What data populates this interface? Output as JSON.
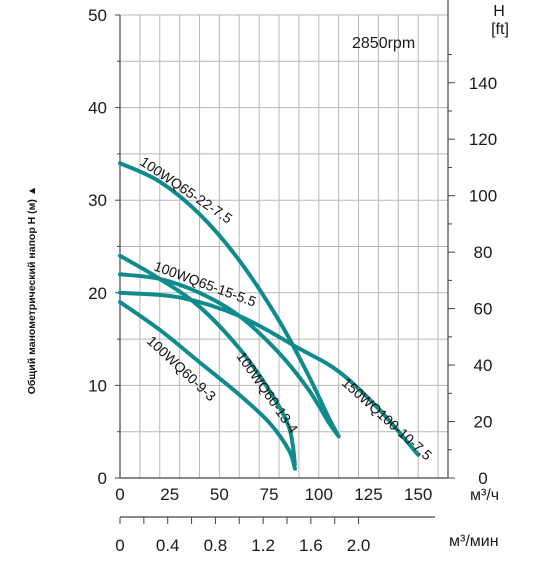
{
  "chart_data": {
    "type": "line",
    "speed_label": "2850rpm",
    "ylabel": "Общий манометрический напор Н (м)",
    "y_axis_m": {
      "range": [
        0,
        50
      ],
      "ticks": [
        "0",
        "10",
        "20",
        "30",
        "40",
        "50"
      ]
    },
    "y_axis_ft": {
      "title": "H",
      "unit": "[ft]",
      "range": [
        0,
        164
      ],
      "ticks": [
        "0",
        "20",
        "40",
        "60",
        "80",
        "100",
        "120",
        "140"
      ]
    },
    "x_axis_m3h": {
      "unit": "м³/ч",
      "range": [
        0,
        165
      ],
      "ticks": [
        "0",
        "25",
        "50",
        "75",
        "100",
        "125",
        "150"
      ]
    },
    "x_axis_m3min": {
      "unit": "м³/мин",
      "ticks": [
        "0",
        "0.4",
        "0.8",
        "1.2",
        "1.6",
        "2.0"
      ]
    },
    "series_color": "#0f8b8d",
    "series": [
      {
        "name": "100WQ65-22-7.5",
        "points": [
          [
            0,
            34
          ],
          [
            20,
            32
          ],
          [
            40,
            28.5
          ],
          [
            60,
            23.5
          ],
          [
            80,
            17
          ],
          [
            95,
            11
          ],
          [
            105,
            6.5
          ],
          [
            110,
            4.5
          ]
        ]
      },
      {
        "name": "100WQ65-15-5.5",
        "points": [
          [
            0,
            22
          ],
          [
            20,
            21.5
          ],
          [
            40,
            20
          ],
          [
            60,
            17.5
          ],
          [
            80,
            13.5
          ],
          [
            95,
            9.5
          ],
          [
            105,
            6
          ],
          [
            110,
            4.5
          ]
        ]
      },
      {
        "name": "100WQ60-13-4",
        "points": [
          [
            0,
            24
          ],
          [
            20,
            21.5
          ],
          [
            40,
            18.5
          ],
          [
            60,
            14
          ],
          [
            75,
            9.5
          ],
          [
            85,
            5.5
          ],
          [
            88,
            1.5
          ]
        ]
      },
      {
        "name": "100WQ60-9-3",
        "points": [
          [
            0,
            19
          ],
          [
            20,
            16
          ],
          [
            40,
            12.5
          ],
          [
            60,
            9
          ],
          [
            75,
            6
          ],
          [
            85,
            3
          ],
          [
            88,
            1
          ]
        ]
      },
      {
        "name": "150WQ100-10-7.5",
        "points": [
          [
            0,
            20
          ],
          [
            30,
            19.5
          ],
          [
            60,
            17.5
          ],
          [
            90,
            14
          ],
          [
            110,
            11.5
          ],
          [
            130,
            7.5
          ],
          [
            150,
            2.5
          ]
        ]
      }
    ]
  }
}
